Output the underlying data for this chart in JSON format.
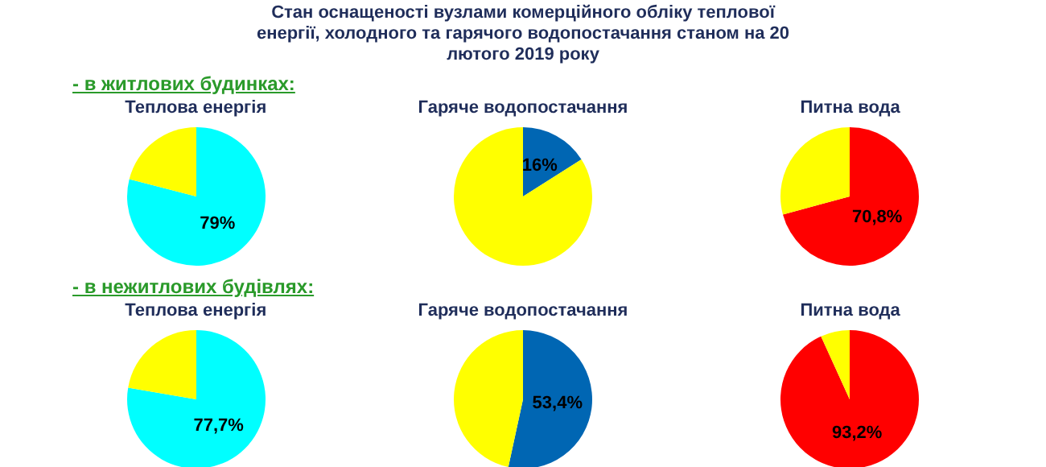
{
  "chart_data": [
    {
      "type": "pie",
      "title": "Теплова енергія",
      "categories": [
        null,
        null
      ],
      "values": [
        79,
        21
      ],
      "colors": [
        "#00ffff",
        "#ffff00"
      ],
      "value_labels": [
        "79%",
        null
      ],
      "annotations": [
        "Стан оснащеності вузлами комерційного обліку теплової енергії, холодного та гарячого водопостачання станом на 20 лютого 2019 року",
        "- в житлових будинках:"
      ]
    },
    {
      "type": "pie",
      "title": "Гаряче водопостачання",
      "categories": [
        null,
        null
      ],
      "values": [
        16,
        84
      ],
      "colors": [
        "#0066b3",
        "#ffff00"
      ],
      "value_labels": [
        "16%",
        null
      ]
    },
    {
      "type": "pie",
      "title": "Питна вода",
      "categories": [
        null,
        null
      ],
      "values": [
        70.8,
        29.2
      ],
      "colors": [
        "#ff0000",
        "#ffff00"
      ],
      "value_labels": [
        "70,8%",
        null
      ]
    },
    {
      "type": "pie",
      "title": "Теплова енергія",
      "categories": [
        null,
        null
      ],
      "values": [
        77.7,
        22.3
      ],
      "colors": [
        "#00ffff",
        "#ffff00"
      ],
      "value_labels": [
        "77,7%",
        null
      ],
      "annotations": [
        "- в нежитлових будівлях:"
      ]
    },
    {
      "type": "pie",
      "title": "Гаряче водопостачання",
      "categories": [
        null,
        null
      ],
      "values": [
        53.4,
        46.6
      ],
      "colors": [
        "#0066b3",
        "#ffff00"
      ],
      "value_labels": [
        "53,4%",
        null
      ]
    },
    {
      "type": "pie",
      "title": "Питна вода",
      "categories": [
        null,
        null
      ],
      "values": [
        93.2,
        6.8
      ],
      "colors": [
        "#ff0000",
        "#ffff00"
      ],
      "value_labels": [
        "93,2%",
        null
      ]
    }
  ]
}
